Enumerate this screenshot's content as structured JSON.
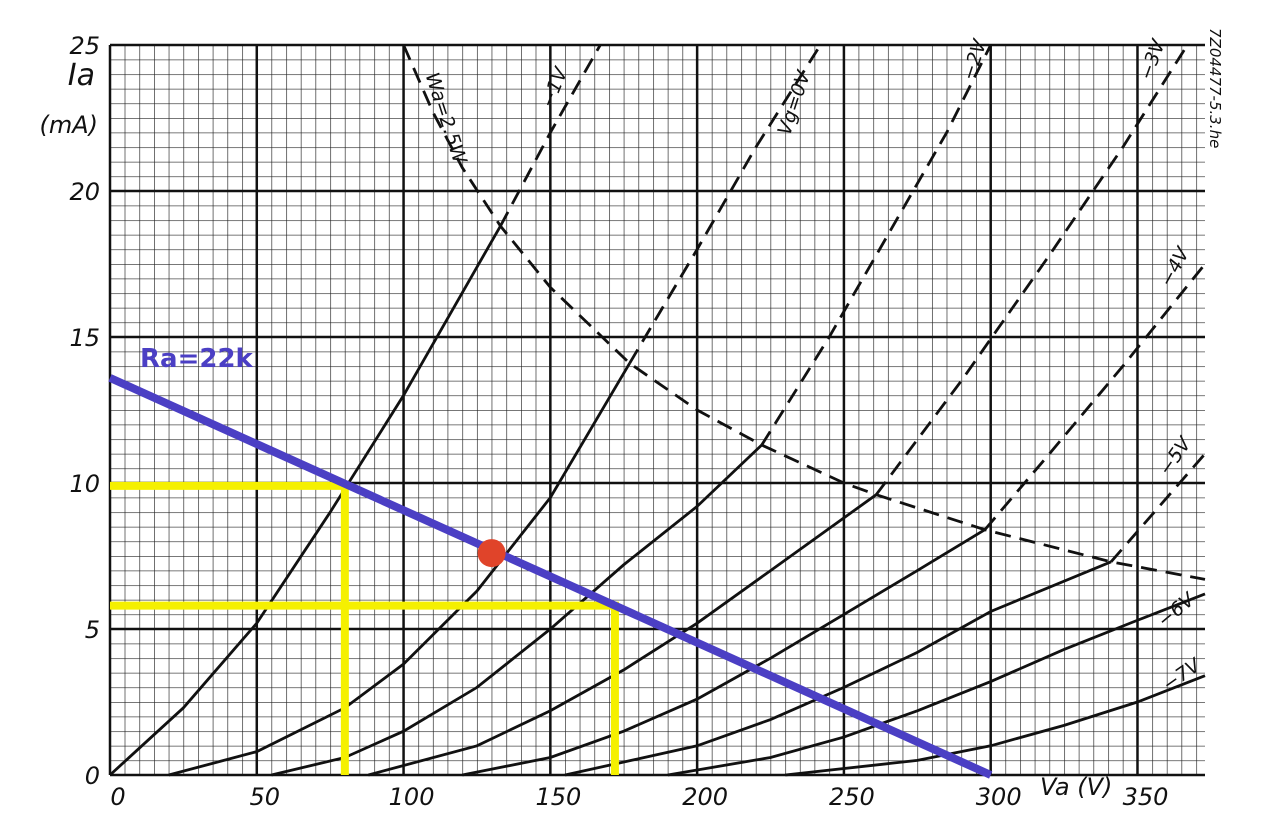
{
  "chart_data": {
    "type": "line",
    "y_label": "Ia",
    "y_unit": "(mA)",
    "x_label": "Va (V)",
    "side_code": "7Z04477-5.3.he",
    "xlim": [
      0,
      373
    ],
    "ylim": [
      0,
      25
    ],
    "xticks": [
      0,
      50,
      100,
      150,
      200,
      250,
      300,
      350
    ],
    "yticks": [
      0,
      5,
      10,
      15,
      20,
      25
    ],
    "grid": true,
    "color": "#111111",
    "series": [
      {
        "name": "Vg=0V",
        "x": [
          0,
          25,
          50,
          75,
          100,
          133
        ],
        "values": [
          0,
          2.3,
          5.2,
          9,
          13,
          18.8
        ],
        "dashed": {
          "x": [
            133,
            150,
            167
          ],
          "values": [
            18.8,
            22,
            25
          ]
        }
      },
      {
        "name": "−1V",
        "x": [
          20,
          50,
          80,
          100,
          125,
          150,
          177
        ],
        "values": [
          0,
          0.8,
          2.3,
          3.8,
          6.3,
          9.5,
          14.1
        ],
        "dashed": {
          "x": [
            177,
            200,
            220,
            242
          ],
          "values": [
            14.1,
            18,
            21.5,
            25
          ]
        }
      },
      {
        "name": "−2V",
        "x": [
          55,
          80,
          100,
          125,
          150,
          175,
          200,
          222
        ],
        "values": [
          0,
          0.6,
          1.5,
          3,
          5,
          7.2,
          9.2,
          11.3
        ],
        "dashed": {
          "x": [
            222,
            245,
            265,
            285,
            300
          ],
          "values": [
            11.3,
            15,
            18.5,
            22,
            25
          ]
        }
      },
      {
        "name": "−3V",
        "x": [
          88,
          125,
          150,
          175,
          200,
          225,
          261
        ],
        "values": [
          0,
          1,
          2.2,
          3.6,
          5.2,
          7,
          9.6
        ],
        "dashed": {
          "x": [
            261,
            290,
            320,
            345,
            367
          ],
          "values": [
            9.6,
            13.5,
            17.8,
            21.5,
            25
          ]
        }
      },
      {
        "name": "−4V",
        "x": [
          120,
          150,
          175,
          200,
          225,
          250,
          275,
          298
        ],
        "values": [
          0,
          0.6,
          1.5,
          2.6,
          4,
          5.5,
          7,
          8.4
        ],
        "dashed": {
          "x": [
            298,
            320,
            345,
            373
          ],
          "values": [
            8.4,
            11,
            14,
            17.5
          ]
        }
      },
      {
        "name": "−5V",
        "x": [
          155,
          200,
          225,
          250,
          275,
          300,
          341
        ],
        "values": [
          0,
          1,
          1.9,
          3,
          4.2,
          5.6,
          7.3
        ],
        "dashed": {
          "x": [
            341,
            373
          ],
          "values": [
            7.3,
            11
          ]
        }
      },
      {
        "name": "−6V",
        "x": [
          190,
          225,
          250,
          275,
          300,
          325,
          350,
          373
        ],
        "values": [
          0,
          0.6,
          1.3,
          2.2,
          3.2,
          4.3,
          5.3,
          6.2
        ]
      },
      {
        "name": "−7V",
        "x": [
          230,
          275,
          300,
          325,
          350,
          373
        ],
        "values": [
          0,
          0.5,
          1,
          1.7,
          2.5,
          3.4
        ]
      }
    ],
    "power_curve": {
      "name": "Wa=2.5W",
      "x": [
        100,
        110,
        120,
        133,
        150,
        177,
        200,
        222,
        250,
        261,
        298,
        341,
        373
      ],
      "values": [
        25,
        22.7,
        20.8,
        18.8,
        16.7,
        14.1,
        12.5,
        11.3,
        10,
        9.6,
        8.4,
        7.3,
        6.7
      ]
    },
    "load_line": {
      "name": "Ra=22k",
      "color": "#4b3fc4",
      "x": [
        0,
        300
      ],
      "values": [
        13.6,
        0
      ]
    },
    "guides": {
      "color": "#f5f000",
      "lines": [
        {
          "x": [
            0,
            80,
            80
          ],
          "values": [
            9.9,
            9.9,
            0
          ]
        },
        {
          "x": [
            0,
            172,
            172
          ],
          "values": [
            5.8,
            5.8,
            0
          ]
        }
      ]
    },
    "operating_point": {
      "color": "#e0442a",
      "x": 130,
      "value": 7.6
    }
  }
}
